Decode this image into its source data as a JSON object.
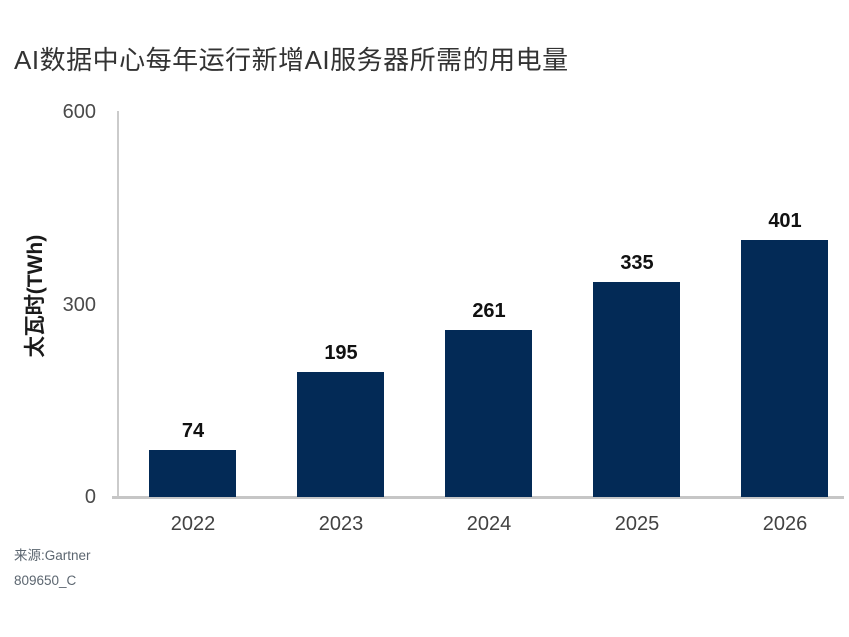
{
  "footer": {
    "source": "来源:Gartner",
    "code": "809650_C"
  },
  "chart_data": {
    "type": "bar",
    "title": "AI数据中心每年运行新增AI服务器所需的用电量",
    "categories": [
      "2022",
      "2023",
      "2024",
      "2025",
      "2026"
    ],
    "values": [
      74,
      195,
      261,
      335,
      401
    ],
    "xlabel": "",
    "ylabel": "太瓦时(TWh)",
    "ylim": [
      0,
      600
    ],
    "yticks": [
      0,
      300,
      600
    ],
    "bar_color": "#032a56",
    "grid": false,
    "legend": "none"
  }
}
